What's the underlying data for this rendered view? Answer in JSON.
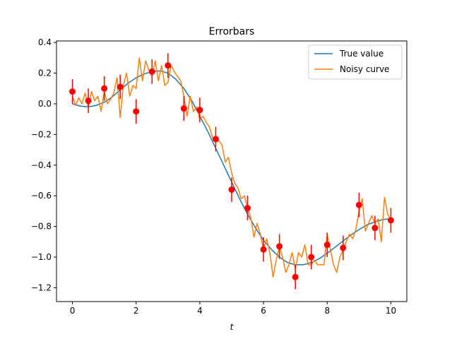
{
  "chart_data": {
    "type": "line",
    "title": "Errorbars",
    "xlabel": "t",
    "ylabel": "",
    "xlim": [
      -0.5,
      10.5
    ],
    "ylim": [
      -1.29,
      0.41
    ],
    "xticks": [
      0,
      2,
      4,
      6,
      8,
      10
    ],
    "xtick_labels": [
      "0",
      "2",
      "4",
      "6",
      "8",
      "10"
    ],
    "yticks": [
      0.4,
      0.2,
      0.0,
      -0.2,
      -0.4,
      -0.6,
      -0.8,
      -1.0,
      -1.2
    ],
    "ytick_labels": [
      "0.4",
      "0.2",
      "0.0",
      "−0.2",
      "−0.4",
      "−0.6",
      "−0.8",
      "−1.0",
      "−1.2"
    ],
    "grid": false,
    "legend_position": "top-right",
    "series": [
      {
        "name": "True value",
        "kind": "line",
        "color": "#1f77b4",
        "x": [
          0,
          0.25,
          0.5,
          0.75,
          1,
          1.25,
          1.5,
          1.75,
          2,
          2.25,
          2.5,
          2.75,
          3,
          3.25,
          3.5,
          3.75,
          4,
          4.25,
          4.5,
          4.75,
          5,
          5.25,
          5.5,
          5.75,
          6,
          6.25,
          6.5,
          6.75,
          7,
          7.25,
          7.5,
          7.75,
          8,
          8.25,
          8.5,
          8.75,
          9,
          9.25,
          9.5,
          9.75,
          10
        ],
        "y": [
          0.0,
          -0.015,
          -0.02,
          -0.01,
          0.01,
          0.045,
          0.09,
          0.135,
          0.17,
          0.195,
          0.21,
          0.215,
          0.2,
          0.16,
          0.1,
          0.02,
          -0.08,
          -0.18,
          -0.29,
          -0.4,
          -0.51,
          -0.62,
          -0.72,
          -0.81,
          -0.89,
          -0.95,
          -1.0,
          -1.035,
          -1.05,
          -1.05,
          -1.035,
          -1.01,
          -0.975,
          -0.935,
          -0.895,
          -0.855,
          -0.82,
          -0.79,
          -0.77,
          -0.755,
          -0.75
        ]
      },
      {
        "name": "Noisy curve",
        "kind": "line",
        "color": "#ff7f0e",
        "x": [
          0,
          0.1,
          0.2,
          0.3,
          0.4,
          0.5,
          0.6,
          0.7,
          0.8,
          0.9,
          1.0,
          1.1,
          1.2,
          1.3,
          1.4,
          1.5,
          1.6,
          1.7,
          1.8,
          1.9,
          2.0,
          2.1,
          2.2,
          2.3,
          2.4,
          2.5,
          2.6,
          2.7,
          2.8,
          2.9,
          3.0,
          3.1,
          3.2,
          3.3,
          3.4,
          3.5,
          3.6,
          3.7,
          3.8,
          3.9,
          4.0,
          4.1,
          4.2,
          4.3,
          4.4,
          4.5,
          4.6,
          4.7,
          4.8,
          4.9,
          5.0,
          5.1,
          5.2,
          5.3,
          5.4,
          5.5,
          5.6,
          5.7,
          5.8,
          5.9,
          6.0,
          6.1,
          6.2,
          6.3,
          6.4,
          6.5,
          6.6,
          6.7,
          6.8,
          6.9,
          7.0,
          7.1,
          7.2,
          7.3,
          7.4,
          7.5,
          7.6,
          7.7,
          7.8,
          7.9,
          8.0,
          8.1,
          8.2,
          8.3,
          8.4,
          8.5,
          8.6,
          8.7,
          8.8,
          8.9,
          9.0,
          9.1,
          9.2,
          9.3,
          9.4,
          9.5,
          9.6,
          9.7,
          9.8,
          9.9,
          10.0
        ],
        "y": [
          0.05,
          -0.01,
          0.04,
          0.0,
          0.07,
          -0.02,
          0.08,
          0.02,
          0.05,
          -0.05,
          0.08,
          0.0,
          0.03,
          0.07,
          0.17,
          -0.09,
          0.12,
          0.2,
          0.05,
          0.12,
          0.1,
          0.3,
          0.15,
          0.28,
          0.22,
          0.18,
          0.28,
          0.15,
          0.25,
          0.12,
          0.14,
          0.25,
          0.21,
          0.18,
          0.15,
          0.05,
          -0.08,
          0.05,
          -0.05,
          -0.02,
          -0.1,
          -0.08,
          -0.12,
          -0.15,
          -0.22,
          -0.25,
          -0.24,
          -0.27,
          -0.38,
          -0.35,
          -0.45,
          -0.52,
          -0.55,
          -0.62,
          -0.6,
          -0.68,
          -0.74,
          -0.87,
          -0.78,
          -0.85,
          -0.95,
          -0.88,
          -0.97,
          -1.13,
          -1.02,
          -0.93,
          -1.0,
          -1.1,
          -1.05,
          -0.97,
          -1.08,
          -0.97,
          -1.0,
          -0.92,
          -1.05,
          -1.05,
          -1.02,
          -1.05,
          -1.05,
          -1.05,
          -0.85,
          -0.95,
          -1.05,
          -1.1,
          -1.0,
          -0.95,
          -0.9,
          -0.85,
          -0.88,
          -0.82,
          -0.7,
          -0.62,
          -0.83,
          -0.78,
          -0.73,
          -0.78,
          -0.75,
          -0.9,
          -0.61,
          -0.72,
          -0.76
        ]
      },
      {
        "name": "",
        "kind": "errorbar",
        "color": "#ff0000",
        "x": [
          0,
          0.5,
          1.0,
          1.5,
          2.0,
          2.5,
          3.0,
          3.5,
          4.0,
          4.5,
          5.0,
          5.5,
          6.0,
          6.5,
          7.0,
          7.5,
          8.0,
          8.5,
          9.0,
          9.5,
          10.0
        ],
        "y": [
          0.08,
          0.02,
          0.1,
          0.11,
          -0.05,
          0.21,
          0.25,
          -0.03,
          -0.04,
          -0.23,
          -0.56,
          -0.68,
          -0.95,
          -0.93,
          -1.13,
          -1.0,
          -0.92,
          -0.94,
          -0.66,
          -0.81,
          -0.76
        ],
        "yerr": [
          0.08,
          0.08,
          0.08,
          0.08,
          0.08,
          0.08,
          0.08,
          0.08,
          0.08,
          0.08,
          0.08,
          0.08,
          0.08,
          0.08,
          0.08,
          0.08,
          0.08,
          0.08,
          0.08,
          0.08,
          0.08
        ]
      }
    ]
  }
}
